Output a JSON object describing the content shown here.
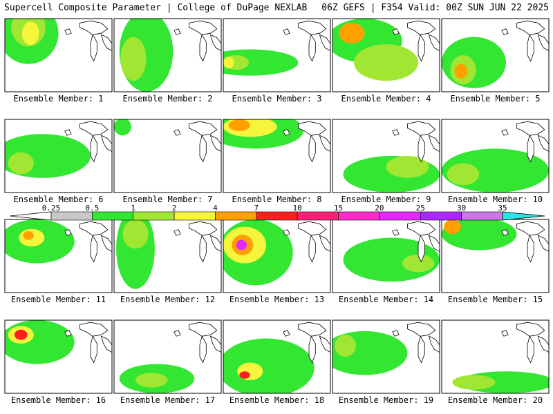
{
  "header": {
    "title_left": "Supercell Composite Parameter | College of DuPage NEXLAB",
    "title_right": "06Z GEFS | F354 Valid: 00Z SUN JUN 22 2025"
  },
  "member_label_prefix": "Ensemble Member: ",
  "colorbar": {
    "ticks": [
      "0.25",
      "0.5",
      "1",
      "2",
      "4",
      "7",
      "10",
      "15",
      "20",
      "25",
      "30",
      "35"
    ],
    "colors": [
      "#c8c8c8",
      "#32e632",
      "#a0e632",
      "#f5f53c",
      "#ffa000",
      "#ff1e1e",
      "#ff1e78",
      "#ff28c8",
      "#e628ff",
      "#aa28ff",
      "#c878e6",
      "#28e6e6"
    ]
  },
  "chart_data": {
    "type": "heatmap",
    "variable": "Supercell Composite Parameter",
    "model": "06Z GEFS",
    "forecast_hour": "F354",
    "valid_time": "00Z SUN JUN 22 2025",
    "levels": [
      0.25,
      0.5,
      1,
      2,
      4,
      7,
      10,
      15,
      20,
      25,
      30,
      35
    ],
    "members": [
      {
        "member": 1,
        "blobs": [
          [
            0.22,
            0.2,
            0.28,
            0.42,
            1
          ],
          [
            0.22,
            0.12,
            0.16,
            0.26,
            2
          ],
          [
            0.24,
            0.2,
            0.08,
            0.16,
            3
          ]
        ]
      },
      {
        "member": 2,
        "blobs": [
          [
            0.3,
            0.45,
            0.25,
            0.55,
            1
          ],
          [
            0.18,
            0.55,
            0.12,
            0.3,
            2
          ]
        ]
      },
      {
        "member": 3,
        "blobs": [
          [
            0.25,
            0.6,
            0.45,
            0.18,
            1
          ],
          [
            0.12,
            0.6,
            0.12,
            0.1,
            2
          ],
          [
            0.05,
            0.6,
            0.05,
            0.08,
            3
          ]
        ]
      },
      {
        "member": 4,
        "blobs": [
          [
            0.3,
            0.3,
            0.35,
            0.3,
            1
          ],
          [
            0.5,
            0.6,
            0.3,
            0.25,
            2
          ],
          [
            0.18,
            0.2,
            0.12,
            0.14,
            4
          ]
        ]
      },
      {
        "member": 5,
        "blobs": [
          [
            0.3,
            0.6,
            0.3,
            0.35,
            1
          ],
          [
            0.2,
            0.7,
            0.12,
            0.2,
            2
          ],
          [
            0.18,
            0.72,
            0.06,
            0.1,
            4
          ]
        ]
      },
      {
        "member": 6,
        "blobs": [
          [
            0.35,
            0.5,
            0.45,
            0.3,
            1
          ],
          [
            0.15,
            0.6,
            0.12,
            0.15,
            2
          ]
        ]
      },
      {
        "member": 7,
        "blobs": [
          [
            0.08,
            0.1,
            0.08,
            0.12,
            1
          ]
        ]
      },
      {
        "member": 8,
        "blobs": [
          [
            0.3,
            0.15,
            0.45,
            0.25,
            1
          ],
          [
            0.25,
            0.1,
            0.25,
            0.14,
            3
          ],
          [
            0.15,
            0.08,
            0.1,
            0.08,
            4
          ]
        ]
      },
      {
        "member": 9,
        "blobs": [
          [
            0.55,
            0.75,
            0.45,
            0.25,
            1
          ],
          [
            0.7,
            0.65,
            0.2,
            0.15,
            2
          ]
        ]
      },
      {
        "member": 10,
        "blobs": [
          [
            0.5,
            0.7,
            0.5,
            0.3,
            1
          ],
          [
            0.2,
            0.75,
            0.15,
            0.15,
            2
          ]
        ]
      },
      {
        "member": 11,
        "blobs": [
          [
            0.3,
            0.3,
            0.35,
            0.3,
            1
          ],
          [
            0.25,
            0.25,
            0.12,
            0.12,
            3
          ],
          [
            0.22,
            0.22,
            0.05,
            0.06,
            4
          ]
        ]
      },
      {
        "member": 12,
        "blobs": [
          [
            0.2,
            0.4,
            0.18,
            0.55,
            1
          ],
          [
            0.2,
            0.2,
            0.12,
            0.2,
            2
          ]
        ]
      },
      {
        "member": 13,
        "blobs": [
          [
            0.3,
            0.45,
            0.35,
            0.45,
            1
          ],
          [
            0.2,
            0.35,
            0.2,
            0.25,
            3
          ],
          [
            0.18,
            0.35,
            0.1,
            0.14,
            4
          ],
          [
            0.17,
            0.35,
            0.05,
            0.07,
            8
          ]
        ]
      },
      {
        "member": 14,
        "blobs": [
          [
            0.55,
            0.55,
            0.45,
            0.3,
            1
          ],
          [
            0.8,
            0.6,
            0.15,
            0.12,
            2
          ]
        ]
      },
      {
        "member": 15,
        "blobs": [
          [
            0.35,
            0.2,
            0.35,
            0.22,
            1
          ],
          [
            0.1,
            0.1,
            0.08,
            0.1,
            4
          ]
        ]
      },
      {
        "member": 16,
        "blobs": [
          [
            0.3,
            0.3,
            0.35,
            0.3,
            1
          ],
          [
            0.15,
            0.2,
            0.12,
            0.12,
            3
          ],
          [
            0.15,
            0.2,
            0.06,
            0.07,
            5
          ]
        ]
      },
      {
        "member": 17,
        "blobs": [
          [
            0.4,
            0.8,
            0.35,
            0.2,
            1
          ],
          [
            0.35,
            0.82,
            0.15,
            0.1,
            2
          ]
        ]
      },
      {
        "member": 18,
        "blobs": [
          [
            0.4,
            0.65,
            0.45,
            0.4,
            1
          ],
          [
            0.25,
            0.7,
            0.12,
            0.12,
            3
          ],
          [
            0.2,
            0.75,
            0.05,
            0.05,
            5
          ]
        ]
      },
      {
        "member": 19,
        "blobs": [
          [
            0.3,
            0.45,
            0.4,
            0.3,
            1
          ],
          [
            0.12,
            0.35,
            0.1,
            0.15,
            2
          ]
        ]
      },
      {
        "member": 20,
        "blobs": [
          [
            0.6,
            0.85,
            0.45,
            0.15,
            1
          ],
          [
            0.3,
            0.85,
            0.2,
            0.1,
            2
          ]
        ]
      }
    ]
  }
}
